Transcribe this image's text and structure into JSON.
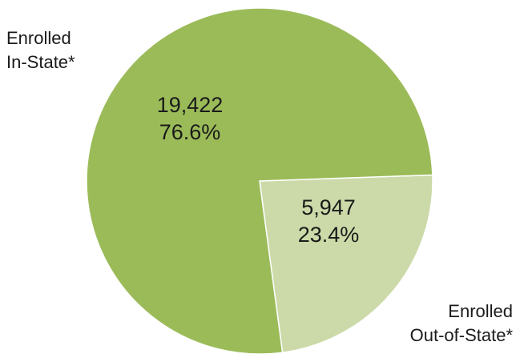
{
  "chart_data": {
    "type": "pie",
    "categories": [
      "Enrolled In-State*",
      "Enrolled Out-of-State*"
    ],
    "slices": [
      {
        "label_lines": [
          "Enrolled",
          "In-State*"
        ],
        "value": 19422,
        "value_label": "19,422",
        "percent_label": "76.6%",
        "color": "#9bbb59"
      },
      {
        "label_lines": [
          "Enrolled",
          "Out-of-State*"
        ],
        "value": 5947,
        "value_label": "5,947",
        "percent_label": "23.4%",
        "color": "#cbdaa8"
      }
    ],
    "title": "",
    "legend": "none"
  }
}
